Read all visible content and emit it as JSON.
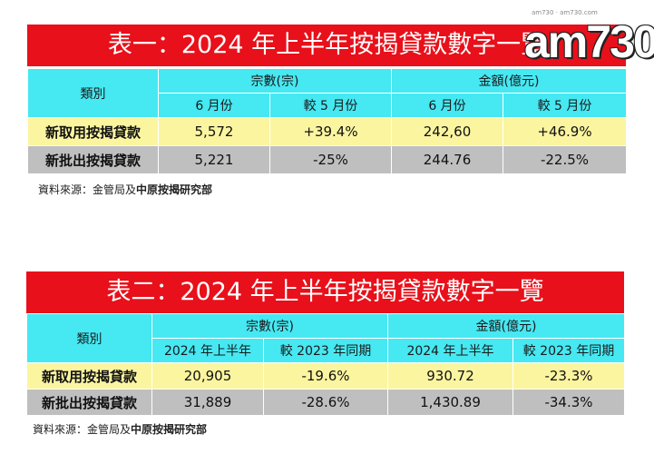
{
  "logo": {
    "text": "am730",
    "tagline": "am730 · am730.com"
  },
  "table1": {
    "title": "表一：2024 年上半年按揭貸款數字一覽",
    "category_header": "類別",
    "group1_header": "宗數(宗)",
    "group2_header": "金額(億元)",
    "sub_headers": [
      "6 月份",
      "較 5 月份",
      "6 月份",
      "較 5 月份"
    ],
    "rows": [
      {
        "label": "新取用按揭貸款",
        "values": [
          "5,572",
          "+39.4%",
          "242,60",
          "+46.9%"
        ]
      },
      {
        "label": "新批出按揭貸款",
        "values": [
          "5,221",
          "-25%",
          "244.76",
          "-22.5%"
        ]
      }
    ],
    "source_prefix": "資料來源：金管局及",
    "source_bold": "中原按揭研究部"
  },
  "table2": {
    "title": "表二：2024 年上半年按揭貸款數字一覽",
    "category_header": "類別",
    "group1_header": "宗數(宗)",
    "group2_header": "金額(億元)",
    "sub_headers": [
      "2024 年上半年",
      "較 2023 年同期",
      "2024 年上半年",
      "較 2023 年同期"
    ],
    "rows": [
      {
        "label": "新取用按揭貸款",
        "values": [
          "20,905",
          "-19.6%",
          "930.72",
          "-23.3%"
        ]
      },
      {
        "label": "新批出按揭貸款",
        "values": [
          "31,889",
          "-28.6%",
          "1,430.89",
          "-34.3%"
        ]
      }
    ],
    "source_prefix": "資料來源：金管局及",
    "source_bold": "中原按揭研究部"
  },
  "colors": {
    "banner": "#e8101a",
    "header": "#46e8f2",
    "row1": "#fbf5a0",
    "row2": "#bfbfbf"
  }
}
